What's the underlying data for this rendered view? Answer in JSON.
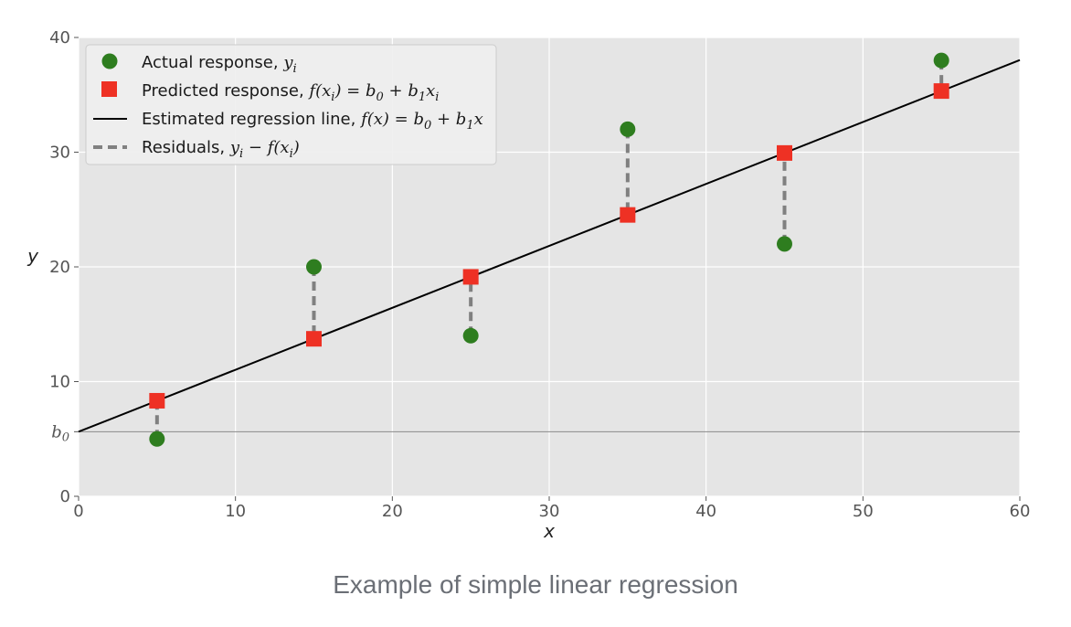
{
  "chart_data": {
    "type": "scatter",
    "title": "",
    "xlabel": "x",
    "ylabel": "y",
    "xlim": [
      0,
      60
    ],
    "ylim": [
      0,
      40
    ],
    "x_ticks": [
      0,
      10,
      20,
      30,
      40,
      50,
      60
    ],
    "y_ticks": [
      0,
      10,
      20,
      30,
      40
    ],
    "b0_tick": {
      "label_base": "b",
      "label_sub": "0",
      "value": 5.63
    },
    "regression": {
      "intercept": 5.63,
      "slope": 0.54
    },
    "grid": true,
    "legend_position": "top-left",
    "series": [
      {
        "name": "Actual response",
        "role": "actual",
        "color": "#2e7d1f",
        "x": [
          5,
          15,
          25,
          35,
          45,
          55
        ],
        "y": [
          5,
          20,
          14,
          32,
          22,
          38
        ]
      },
      {
        "name": "Predicted response",
        "role": "predicted",
        "color": "#ee3124",
        "x": [
          5,
          15,
          25,
          35,
          45,
          55
        ],
        "y": [
          8.33,
          13.73,
          19.13,
          24.53,
          29.93,
          35.33
        ]
      },
      {
        "name": "Estimated regression line",
        "role": "line",
        "color": "#000000"
      },
      {
        "name": "Residuals",
        "role": "residuals",
        "color": "#808080"
      }
    ]
  },
  "legend": {
    "actual": {
      "text": "Actual response, ",
      "math": "y",
      "sub": "i"
    },
    "predicted": {
      "text": "Predicted response, ",
      "math": "f(x",
      "sub": "i",
      "rest": ") = b",
      "rest_sub": "0",
      "rest2": " + b",
      "rest2_sub": "1",
      "rest3": "x",
      "rest3_sub": "i"
    },
    "line": {
      "text": "Estimated regression line, ",
      "math": "f(x) = b",
      "sub": "0",
      "rest": " + b",
      "rest_sub": "1",
      "rest2": "x"
    },
    "residuals": {
      "text": "Residuals, ",
      "math": "y",
      "sub": "i",
      "rest": " − f(x",
      "rest_sub": "i",
      "rest2": ")"
    }
  },
  "caption": "Example of simple linear regression",
  "colors": {
    "plot_bg": "#e5e5e5",
    "grid": "#ffffff",
    "baseline": "#8a8a8a"
  }
}
